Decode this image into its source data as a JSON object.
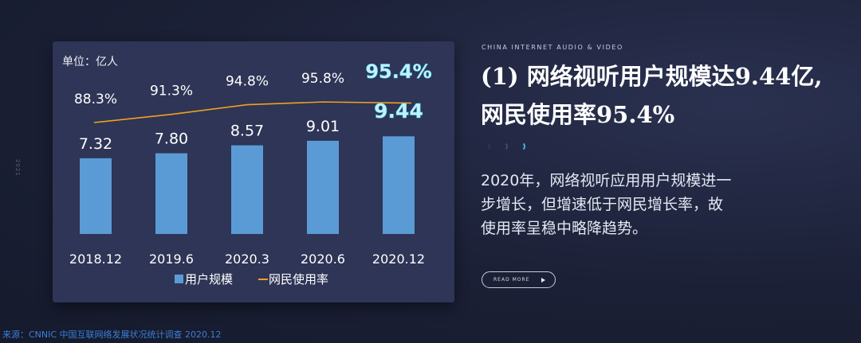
{
  "eyebrow": "CHINA INTERNET AUDIO & VIDEO",
  "headline_line1": "(1) 网络视听用户规模达9.44亿,",
  "headline_line2": "网民使用率95.4%",
  "body": "2020年，网络视听应用用户规模进一步增长，但增速低于网民增长率，故使用率呈稳中略降趋势。",
  "read_more": "READ MORE",
  "source": "来源：CNNIC 中国互联网络发展状况统计调查 2020.12",
  "side_note": "2021",
  "colors": {
    "bar": "#5b9bd5",
    "line": "#f0a020",
    "highlight_text": "#bff3ff",
    "accent": "#3bb6d8"
  },
  "chart_data": {
    "type": "bar",
    "unit": "单位：亿人",
    "categories": [
      "2018.12",
      "2019.6",
      "2020.3",
      "2020.6",
      "2020.12"
    ],
    "series": [
      {
        "name": "用户规模",
        "type": "bar",
        "values": [
          7.32,
          7.8,
          8.57,
          9.01,
          9.44
        ],
        "labels": [
          "7.32",
          "7.80",
          "8.57",
          "9.01",
          "9.44"
        ]
      },
      {
        "name": "网民使用率",
        "type": "line",
        "values": [
          88.3,
          91.3,
          94.8,
          95.8,
          95.4
        ],
        "labels": [
          "88.3%",
          "91.3%",
          "94.8%",
          "95.8%",
          "95.4%"
        ]
      }
    ],
    "highlight_last": true,
    "legend_position": "bottom"
  }
}
